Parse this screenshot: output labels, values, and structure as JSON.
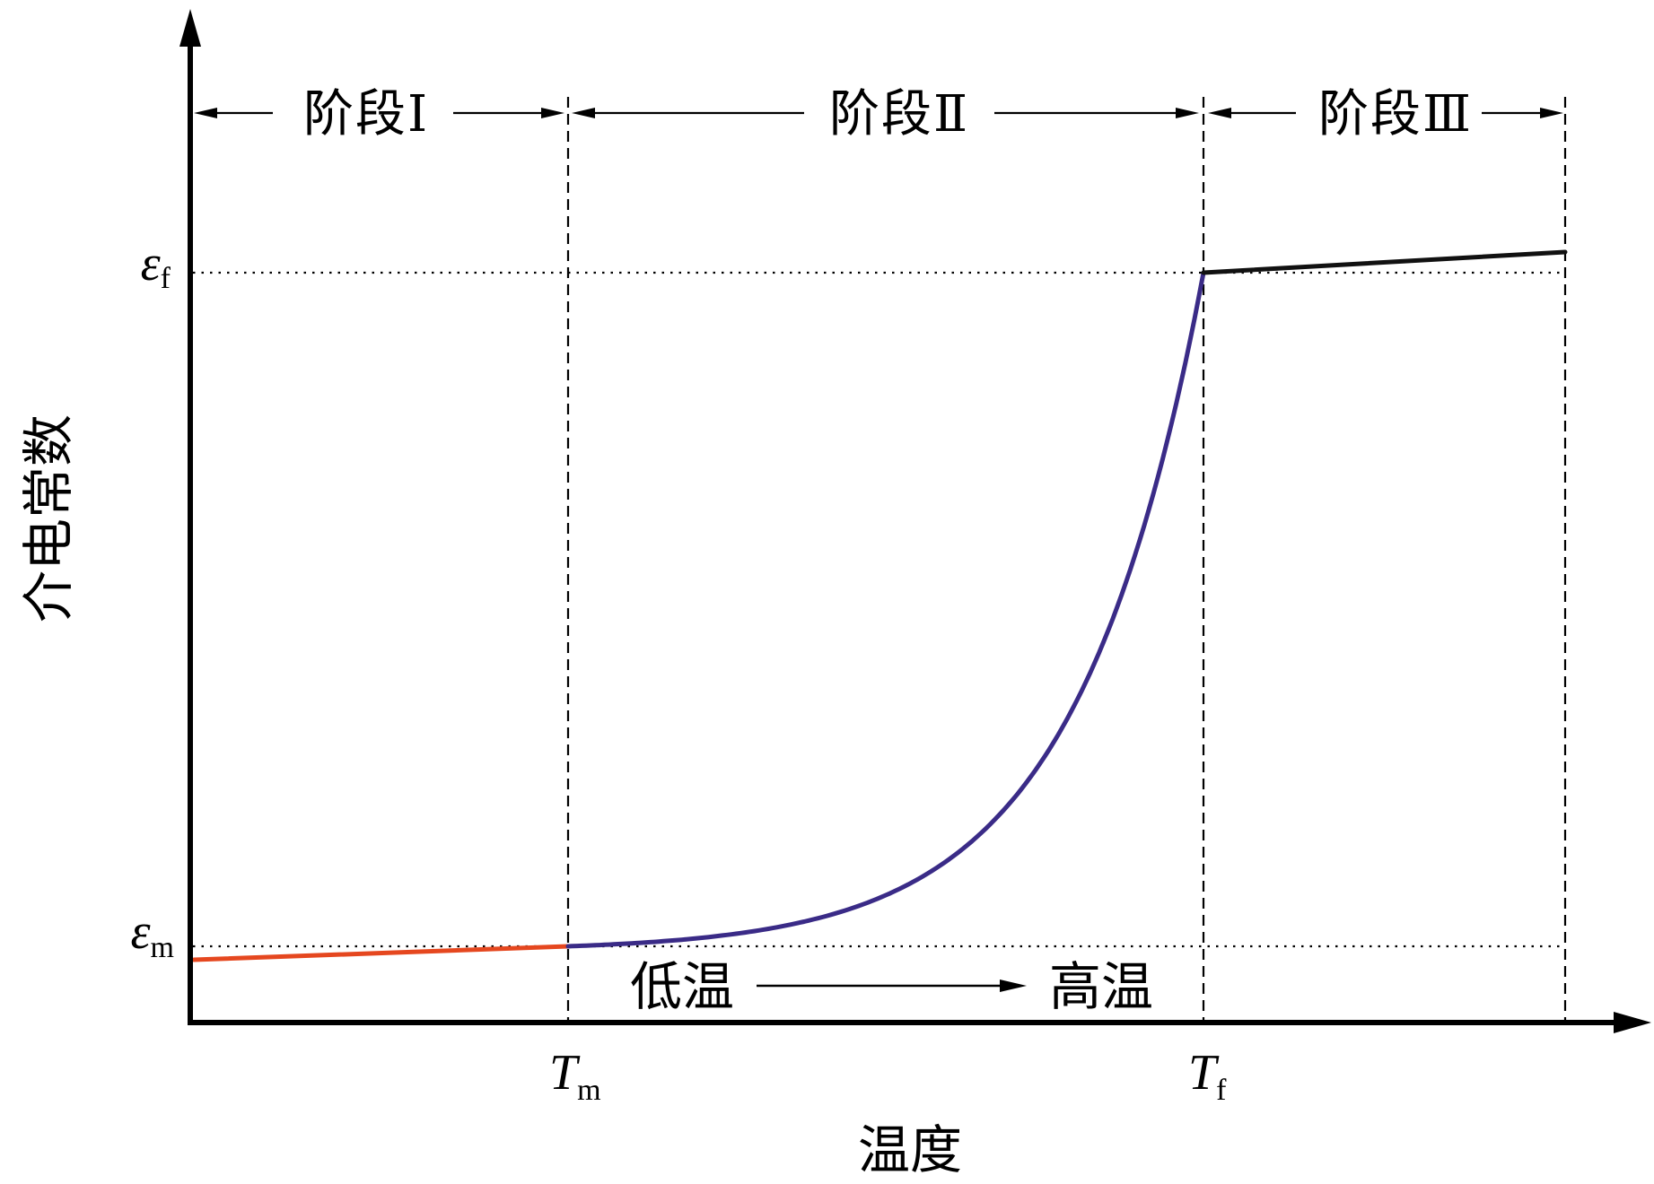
{
  "chart_data": {
    "type": "line",
    "xlabel": "温度",
    "ylabel": "介电常数",
    "x_ticks": [
      {
        "symbol": "T",
        "sub": "m"
      },
      {
        "symbol": "T",
        "sub": "f"
      }
    ],
    "y_ticks": [
      {
        "symbol": "ε",
        "sub": "m"
      },
      {
        "symbol": "ε",
        "sub": "f"
      }
    ],
    "stages": [
      {
        "label": "阶段Ⅰ"
      },
      {
        "label": "阶段Ⅱ"
      },
      {
        "label": "阶段Ⅲ"
      }
    ],
    "annotation": {
      "start": "低温",
      "end": "高温"
    },
    "series": [
      {
        "color": "#e5471f"
      },
      {
        "color": "#3a2b87"
      },
      {
        "color": "#111111"
      }
    ],
    "grid": false
  }
}
